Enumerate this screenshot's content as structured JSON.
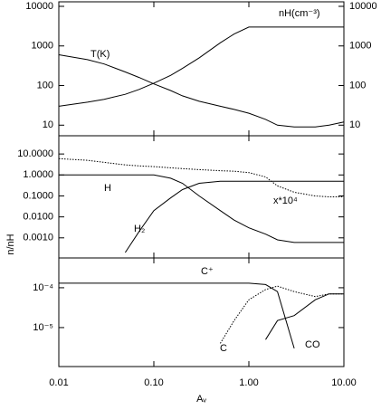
{
  "chart_data": [
    {
      "type": "line",
      "log_y": true,
      "x": [
        0.01,
        0.02,
        0.03,
        0.05,
        0.07,
        0.1,
        0.15,
        0.2,
        0.3,
        0.5,
        0.7,
        1,
        1.5,
        2,
        3,
        5,
        7,
        10
      ],
      "series": [
        {
          "name": "T(K)",
          "color": "#000000",
          "style": "solid",
          "values": [
            600,
            450,
            350,
            220,
            160,
            110,
            75,
            55,
            40,
            30,
            25,
            20,
            14,
            10,
            9,
            9,
            10,
            12
          ]
        },
        {
          "name": "nH(cm⁻³)",
          "color": "#000000",
          "style": "solid",
          "values": [
            30,
            38,
            45,
            60,
            80,
            115,
            180,
            270,
            500,
            1200,
            2000,
            3000,
            3000,
            3000,
            3000,
            3000,
            3000,
            3000
          ]
        }
      ],
      "ylim": [
        5.4,
        13000
      ],
      "yticks": [
        10,
        100,
        1000,
        10000
      ],
      "y2lim": [
        5.4,
        13000
      ],
      "y2ticks": [
        10,
        100,
        1000,
        10000
      ]
    },
    {
      "type": "line",
      "log_y": true,
      "ylabel": "n/nH",
      "x": [
        0.01,
        0.02,
        0.03,
        0.05,
        0.07,
        0.1,
        0.15,
        0.2,
        0.3,
        0.5,
        0.7,
        1,
        1.5,
        2,
        3,
        5,
        7,
        10
      ],
      "series": [
        {
          "name": "H",
          "color": "#000000",
          "style": "solid",
          "values": [
            1,
            1,
            1,
            1,
            1,
            1,
            0.7,
            0.4,
            0.1,
            0.02,
            0.007,
            0.003,
            0.0015,
            0.0008,
            0.0006,
            0.0006,
            0.0006,
            0.0006
          ]
        },
        {
          "name": "H₂",
          "color": "#000000",
          "style": "solid",
          "values": [
            null,
            null,
            null,
            0.0002,
            0.002,
            0.02,
            0.08,
            0.2,
            0.4,
            0.5,
            0.5,
            0.5,
            0.5,
            0.5,
            0.5,
            0.5,
            0.5,
            0.5
          ]
        },
        {
          "name": "x*10⁴",
          "color": "#000000",
          "style": "dotted",
          "values": [
            6,
            5,
            4,
            3,
            2.7,
            2.5,
            2.2,
            2,
            1.8,
            1.6,
            1.5,
            1.3,
            0.8,
            0.3,
            0.15,
            0.1,
            0.09,
            0.09
          ]
        }
      ],
      "ylim": [
        0.00011,
        74
      ],
      "yticks": [
        {
          "value": 10,
          "label": "10.0000"
        },
        {
          "value": 1,
          "label": "1.0000"
        },
        {
          "value": 0.1,
          "label": "0.1000"
        },
        {
          "value": 0.01,
          "label": "0.0100"
        },
        {
          "value": 0.001,
          "label": "0.0010"
        }
      ]
    },
    {
      "type": "line",
      "log_y": true,
      "log_x": true,
      "xlabel": "Aᵥ",
      "x": [
        0.01,
        0.02,
        0.03,
        0.05,
        0.07,
        0.1,
        0.15,
        0.2,
        0.3,
        0.5,
        0.7,
        1,
        1.5,
        2,
        3,
        5,
        7,
        10
      ],
      "series": [
        {
          "name": "C⁺",
          "color": "#000000",
          "style": "solid",
          "values": [
            0.00013,
            0.00013,
            0.00013,
            0.00013,
            0.00013,
            0.00013,
            0.00013,
            0.00013,
            0.00013,
            0.00013,
            0.00013,
            0.00013,
            0.00012,
            8e-05,
            3e-06,
            null,
            null,
            null
          ]
        },
        {
          "name": "C",
          "color": "#000000",
          "style": "dotted",
          "values": [
            null,
            null,
            null,
            null,
            null,
            null,
            null,
            null,
            null,
            4e-06,
            1.5e-05,
            5e-05,
            9e-05,
            0.00011,
            8e-05,
            6e-05,
            7e-05,
            7e-05
          ]
        },
        {
          "name": "CO",
          "color": "#000000",
          "style": "solid",
          "values": [
            null,
            null,
            null,
            null,
            null,
            null,
            null,
            null,
            null,
            null,
            null,
            null,
            5e-06,
            1.5e-05,
            2e-05,
            5e-05,
            7e-05,
            7e-05
          ]
        }
      ],
      "ylim": [
        1.05e-06,
        0.00056
      ],
      "yticks": [
        {
          "value": 0.0001,
          "label": "10⁻⁴"
        },
        {
          "value": 1e-05,
          "label": "10⁻⁵"
        }
      ],
      "xlim": [
        0.01,
        10
      ],
      "xticks": [
        {
          "value": 0.01,
          "label": "0.01"
        },
        {
          "value": 0.1,
          "label": "0.10"
        },
        {
          "value": 1,
          "label": "1.00"
        },
        {
          "value": 10,
          "label": "10.00"
        }
      ]
    }
  ]
}
